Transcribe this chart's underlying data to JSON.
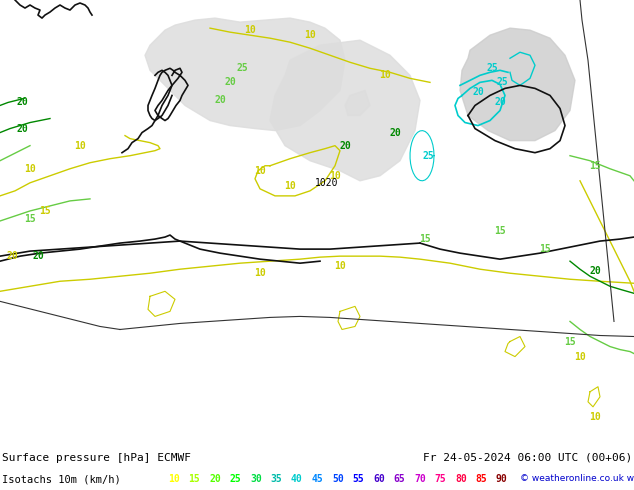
{
  "title_line1": "Surface pressure [hPa] ECMWF",
  "title_line2": "Isotachs 10m (km/h)",
  "datetime_str": "Fr 24-05-2024 06:00 UTC (00+06)",
  "copyright": "© weatheronline.co.uk",
  "legend_values": [
    10,
    15,
    20,
    25,
    30,
    35,
    40,
    45,
    50,
    55,
    60,
    65,
    70,
    75,
    80,
    85,
    90
  ],
  "legend_colors": [
    "#ffff00",
    "#aaff00",
    "#55ff00",
    "#00ff00",
    "#00dd44",
    "#00bbaa",
    "#00cccc",
    "#0088ff",
    "#0044ff",
    "#0000ff",
    "#4400cc",
    "#8800cc",
    "#cc00cc",
    "#ff0088",
    "#ff0044",
    "#ff0000",
    "#880000"
  ],
  "map_bg": "#99ee88",
  "calm_zone_color": "#dddddd",
  "sea_zone_color": "#cccccc",
  "footer_bg": "#ffffff",
  "coastline_color": "#111111",
  "border_color": "#333333",
  "contour_yellow": "#cccc00",
  "contour_green_light": "#66cc44",
  "contour_green_dark": "#008800",
  "contour_cyan": "#00cccc",
  "contour_blue_light": "#0088cc"
}
